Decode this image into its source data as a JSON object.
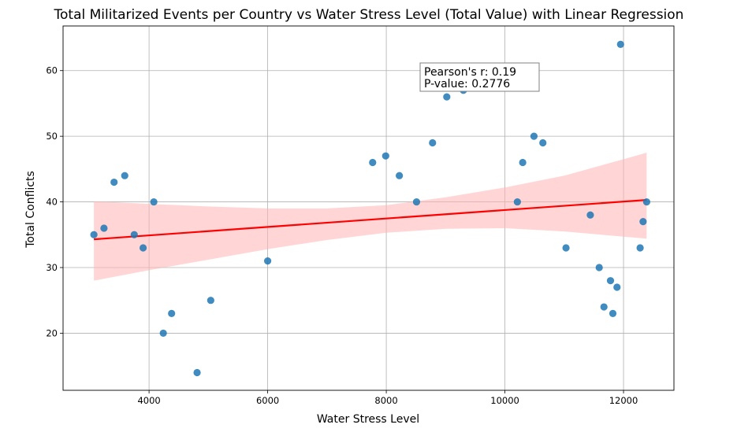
{
  "chart_data": {
    "type": "scatter",
    "title": "Total Militarized Events per Country vs Water Stress Level (Total Value) with Linear Regression",
    "xlabel": "Water Stress Level",
    "ylabel": "Total Conflicts",
    "xlim": [
      2550,
      12850
    ],
    "ylim": [
      11.3,
      66.8
    ],
    "xticks": [
      4000,
      6000,
      8000,
      10000,
      12000
    ],
    "yticks": [
      20,
      30,
      40,
      50,
      60
    ],
    "grid": true,
    "colors": {
      "points": "#1f77b4",
      "regression_line": "#ff0000",
      "confidence_band": "#ffb3b3"
    },
    "points": [
      {
        "x": 3070,
        "y": 35
      },
      {
        "x": 3240,
        "y": 36
      },
      {
        "x": 3410,
        "y": 43
      },
      {
        "x": 3590,
        "y": 44
      },
      {
        "x": 3750,
        "y": 35
      },
      {
        "x": 3900,
        "y": 33
      },
      {
        "x": 4080,
        "y": 40
      },
      {
        "x": 4240,
        "y": 20
      },
      {
        "x": 4380,
        "y": 23
      },
      {
        "x": 4810,
        "y": 14
      },
      {
        "x": 5040,
        "y": 25
      },
      {
        "x": 6000,
        "y": 31
      },
      {
        "x": 7770,
        "y": 46
      },
      {
        "x": 7990,
        "y": 47
      },
      {
        "x": 8220,
        "y": 44
      },
      {
        "x": 8510,
        "y": 40
      },
      {
        "x": 8780,
        "y": 49
      },
      {
        "x": 9020,
        "y": 56
      },
      {
        "x": 9300,
        "y": 57
      },
      {
        "x": 10210,
        "y": 40
      },
      {
        "x": 10300,
        "y": 46
      },
      {
        "x": 10490,
        "y": 50
      },
      {
        "x": 10640,
        "y": 49
      },
      {
        "x": 11030,
        "y": 33
      },
      {
        "x": 11440,
        "y": 38
      },
      {
        "x": 11590,
        "y": 30
      },
      {
        "x": 11670,
        "y": 24
      },
      {
        "x": 11780,
        "y": 28
      },
      {
        "x": 11820,
        "y": 23
      },
      {
        "x": 11890,
        "y": 27
      },
      {
        "x": 11950,
        "y": 64
      },
      {
        "x": 12280,
        "y": 33
      },
      {
        "x": 12330,
        "y": 37
      },
      {
        "x": 12390,
        "y": 40
      }
    ],
    "regression": {
      "x": [
        3070,
        12390
      ],
      "y": [
        34.3,
        40.3
      ]
    },
    "confidence_band": {
      "x": [
        3070,
        4000,
        5000,
        6000,
        7000,
        8000,
        9000,
        10000,
        11000,
        12000,
        12390
      ],
      "lower": [
        28.0,
        29.6,
        31.2,
        32.8,
        34.2,
        35.3,
        35.9,
        36.0,
        35.5,
        34.7,
        34.4
      ],
      "upper": [
        40.1,
        39.7,
        39.3,
        39.0,
        39.0,
        39.5,
        40.7,
        42.2,
        44.0,
        46.5,
        47.5
      ]
    },
    "annotation": {
      "line1": "Pearson's r: 0.19",
      "line2": "P-value: 0.2776"
    }
  }
}
